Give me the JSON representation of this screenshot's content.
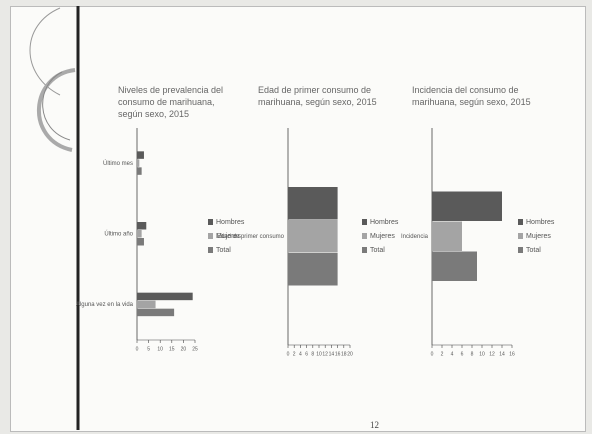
{
  "chart_data": [
    {
      "type": "hbar",
      "title": "Niveles de prevalencia del consumo de marihuana, según sexo, 2015",
      "categories": [
        "Último mes",
        "Último año",
        "Alguna vez en la vida"
      ],
      "series": [
        {
          "name": "Hombres",
          "color": "#5a5a5a",
          "values": [
            3,
            4,
            24
          ]
        },
        {
          "name": "Mujeres",
          "color": "#a4a4a4",
          "values": [
            1,
            2,
            8
          ]
        },
        {
          "name": "Total",
          "color": "#7a7a7a",
          "values": [
            2,
            3,
            16
          ]
        }
      ],
      "xlim": [
        0,
        25
      ],
      "xticks": [
        0,
        5,
        10,
        15,
        20,
        25
      ]
    },
    {
      "type": "hbar",
      "title": "Edad de primer consumo de marihuana, según sexo, 2015",
      "categories": [
        "Edad de primer consumo"
      ],
      "series": [
        {
          "name": "Hombres",
          "color": "#5a5a5a",
          "values": [
            16
          ]
        },
        {
          "name": "Mujeres",
          "color": "#a4a4a4",
          "values": [
            16
          ]
        },
        {
          "name": "Total",
          "color": "#7a7a7a",
          "values": [
            16
          ]
        }
      ],
      "xlim": [
        0,
        20
      ],
      "xticks": [
        0,
        2,
        4,
        6,
        8,
        10,
        12,
        14,
        16,
        18,
        20
      ]
    },
    {
      "type": "hbar",
      "title": "Incidencia del consumo de marihuana, según sexo, 2015",
      "categories": [
        "Incidencia"
      ],
      "series": [
        {
          "name": "Hombres",
          "color": "#5a5a5a",
          "values": [
            14
          ]
        },
        {
          "name": "Mujeres",
          "color": "#a4a4a4",
          "values": [
            6
          ]
        },
        {
          "name": "Total",
          "color": "#7a7a7a",
          "values": [
            9
          ]
        }
      ],
      "xlim": [
        0,
        16
      ],
      "xticks": [
        0,
        2,
        4,
        6,
        8,
        10,
        12,
        14,
        16
      ]
    }
  ],
  "page_number": "12"
}
